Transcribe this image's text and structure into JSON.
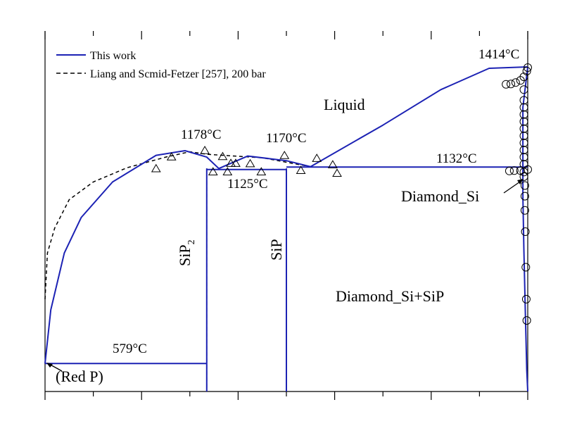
{
  "chart_data": {
    "type": "line",
    "title": "",
    "xlabel": "",
    "ylabel": "",
    "xlim": [
      0,
      1
    ],
    "ylim": [
      500,
      1450
    ],
    "grid": false,
    "legend_position": "top-left",
    "series": [
      {
        "name": "This work",
        "style": "solid",
        "color": "#1c22b4",
        "segments": [
          [
            [
              0.0,
              579
            ],
            [
              0.012,
              730
            ],
            [
              0.04,
              890
            ],
            [
              0.075,
              990
            ],
            [
              0.14,
              1090
            ],
            [
              0.23,
              1165
            ],
            [
              0.29,
              1178
            ],
            [
              0.335,
              1160
            ],
            [
              0.36,
              1128
            ],
            [
              0.42,
              1163
            ],
            [
              0.5,
              1150
            ],
            [
              0.55,
              1133
            ],
            [
              0.7,
              1250
            ],
            [
              0.82,
              1350
            ],
            [
              0.92,
              1410
            ],
            [
              1.0,
              1414
            ]
          ],
          [
            [
              0.335,
              1125
            ],
            [
              0.5,
              1125
            ]
          ],
          [
            [
              0.335,
              1128
            ],
            [
              0.335,
              500
            ]
          ],
          [
            [
              0.5,
              1128
            ],
            [
              0.5,
              500
            ]
          ],
          [
            [
              0.5,
              1132
            ],
            [
              1.0,
              1132
            ]
          ],
          [
            [
              0.0,
              579
            ],
            [
              0.335,
              579
            ]
          ],
          [
            [
              1.0,
              1414
            ],
            [
              0.99,
              1300
            ],
            [
              0.99,
              1050
            ],
            [
              0.992,
              900
            ],
            [
              0.995,
              720
            ],
            [
              0.998,
              560
            ],
            [
              1.0,
              500
            ]
          ]
        ]
      },
      {
        "name": "Liang and Scmid-Fetzer [257], 200 bar",
        "style": "dashed",
        "color": "#000000",
        "segments": [
          [
            [
              0.0,
              760
            ],
            [
              0.005,
              890
            ],
            [
              0.02,
              960
            ],
            [
              0.05,
              1040
            ],
            [
              0.1,
              1090
            ],
            [
              0.17,
              1130
            ],
            [
              0.25,
              1160
            ],
            [
              0.3,
              1175
            ],
            [
              0.335,
              1168
            ],
            [
              0.45,
              1158
            ],
            [
              0.55,
              1133
            ]
          ],
          [
            [
              0.335,
              1125
            ],
            [
              0.5,
              1125
            ]
          ],
          [
            [
              0.335,
              1128
            ],
            [
              0.335,
              500
            ]
          ],
          [
            [
              0.5,
              1128
            ],
            [
              0.5,
              500
            ]
          ],
          [
            [
              0.0,
              579
            ],
            [
              0.335,
              579
            ]
          ]
        ]
      }
    ],
    "markers": {
      "triangles": [
        [
          0.23,
          1127
        ],
        [
          0.262,
          1160
        ],
        [
          0.331,
          1178
        ],
        [
          0.348,
          1118
        ],
        [
          0.368,
          1161
        ],
        [
          0.378,
          1118
        ],
        [
          0.385,
          1142
        ],
        [
          0.395,
          1142
        ],
        [
          0.425,
          1141
        ],
        [
          0.448,
          1118
        ],
        [
          0.496,
          1164
        ],
        [
          0.53,
          1122
        ],
        [
          0.563,
          1156
        ],
        [
          0.596,
          1138
        ],
        [
          0.605,
          1114
        ]
      ],
      "circles": [
        [
          0.955,
          1365
        ],
        [
          0.965,
          1366
        ],
        [
          0.975,
          1370
        ],
        [
          0.985,
          1376
        ],
        [
          0.992,
          1386
        ],
        [
          0.998,
          1402
        ],
        [
          1.0,
          1412
        ],
        [
          0.985,
          1122
        ],
        [
          0.972,
          1122
        ],
        [
          0.962,
          1121
        ],
        [
          0.992,
          1350
        ],
        [
          0.992,
          1320
        ],
        [
          0.992,
          1300
        ],
        [
          0.992,
          1280
        ],
        [
          0.992,
          1260
        ],
        [
          0.992,
          1240
        ],
        [
          0.992,
          1220
        ],
        [
          0.992,
          1200
        ],
        [
          0.992,
          1180
        ],
        [
          0.992,
          1160
        ],
        [
          0.992,
          1140
        ],
        [
          0.992,
          1118
        ],
        [
          0.992,
          1105
        ],
        [
          0.994,
          1080
        ],
        [
          0.994,
          1050
        ],
        [
          0.994,
          1010
        ],
        [
          0.995,
          950
        ],
        [
          0.996,
          850
        ],
        [
          0.997,
          760
        ],
        [
          0.998,
          700
        ],
        [
          1.0,
          1125
        ]
      ]
    },
    "annotations": {
      "t_red_p": "579°C",
      "t_sip2": "1178°C",
      "t_eut": "1125°C",
      "t_sip": "1170°C",
      "t_peri": "1132°C",
      "t_si": "1414°C",
      "liquid": "Liquid",
      "diamond_si": "Diamond_Si",
      "diamond_si_sip": "Diamond_Si+SiP",
      "sip2": "SiP",
      "sip2_sub": "2",
      "sip": "SiP",
      "red_p": "(Red P)"
    },
    "x_ticks": [
      0,
      0.1,
      0.2,
      0.3,
      0.4,
      0.5,
      0.6,
      0.7,
      0.8,
      0.9,
      1.0
    ],
    "x_major_ticks": [
      0,
      0.2,
      0.4,
      0.6,
      0.8,
      1.0
    ]
  }
}
